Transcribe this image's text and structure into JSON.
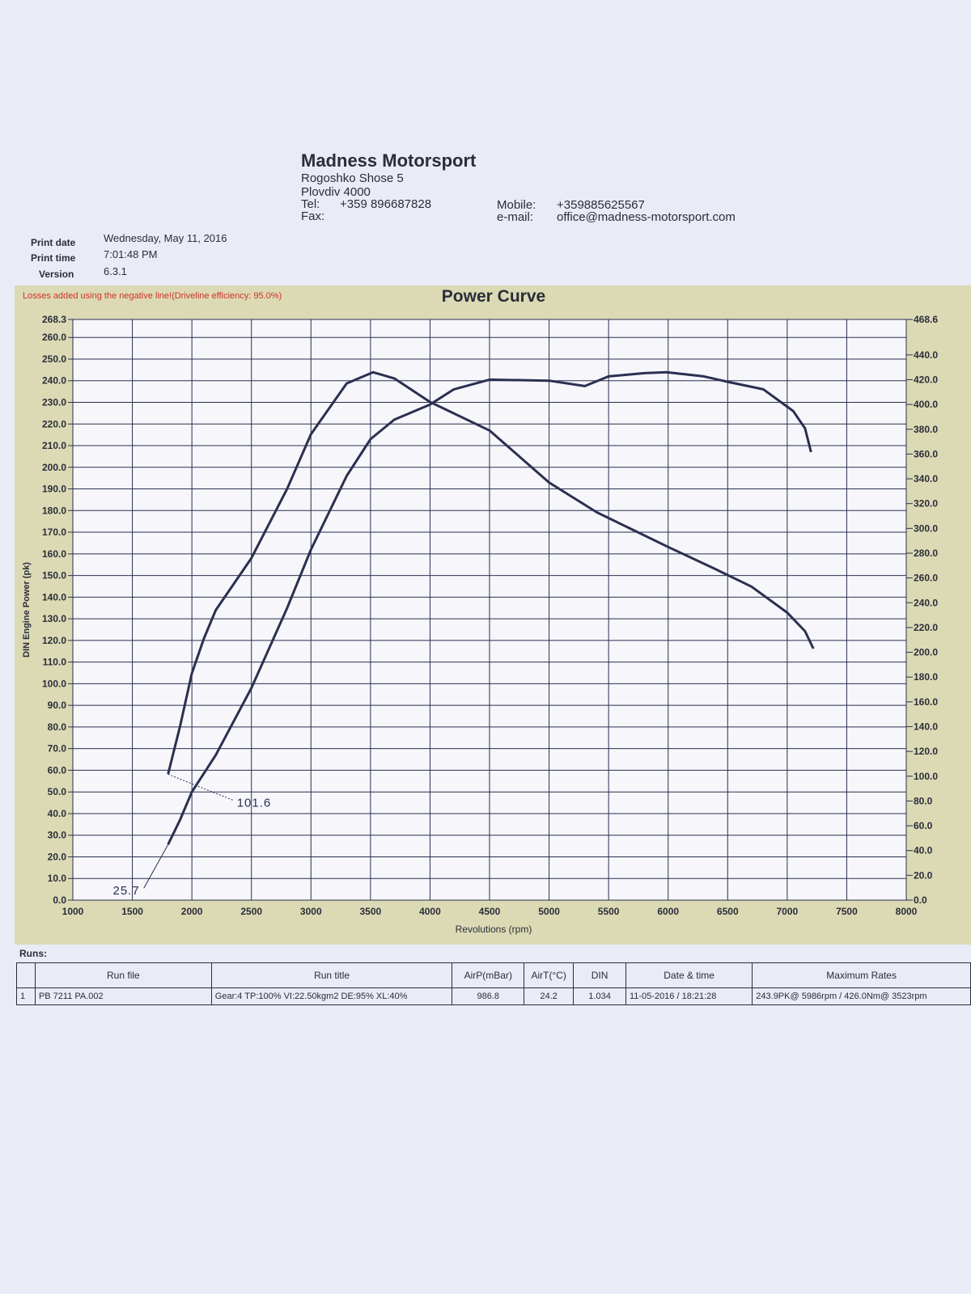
{
  "header": {
    "company": "Madness Motorsport",
    "address": "Rogoshko Shose 5",
    "city": "Plovdiv 4000",
    "tel_label": "Tel:",
    "tel": "+359 896687828",
    "fax_label": "Fax:",
    "mobile_label": "Mobile:",
    "mobile": "+359885625567",
    "email_label": "e-mail:",
    "email": "office@madness-motorsport.com"
  },
  "meta": [
    {
      "label": "Print date",
      "value": "Wednesday, May 11, 2016"
    },
    {
      "label": "Print time",
      "value": "7:01:48 PM"
    },
    {
      "label": "Version",
      "value": "6.3.1"
    }
  ],
  "chart_data": {
    "type": "line",
    "title": "Power Curve",
    "note": "Losses added using the negative line!(Driveline efficiency: 95.0%)",
    "xlabel": "Revolutions (rpm)",
    "ylabel": "DIN Engine Power (pk)",
    "grid": true,
    "xlim": [
      1000,
      8000
    ],
    "xticks": [
      1000,
      1500,
      2000,
      2500,
      3000,
      3500,
      4000,
      4500,
      5000,
      5500,
      6000,
      6500,
      7000,
      7500,
      8000
    ],
    "ylim": [
      0,
      268.3
    ],
    "yticks": [
      {
        "value": 0,
        "label": "0.0"
      },
      {
        "value": 10,
        "label": "10.0"
      },
      {
        "value": 20,
        "label": "20.0"
      },
      {
        "value": 30,
        "label": "30.0"
      },
      {
        "value": 40,
        "label": "40.0"
      },
      {
        "value": 50,
        "label": "50.0"
      },
      {
        "value": 60,
        "label": "60.0"
      },
      {
        "value": 70,
        "label": "70.0"
      },
      {
        "value": 80,
        "label": "80.0"
      },
      {
        "value": 90,
        "label": "90.0"
      },
      {
        "value": 100,
        "label": "100.0"
      },
      {
        "value": 110,
        "label": "110.0"
      },
      {
        "value": 120,
        "label": "120.0"
      },
      {
        "value": 130,
        "label": "130.0"
      },
      {
        "value": 140,
        "label": "140.0"
      },
      {
        "value": 150,
        "label": "150.0"
      },
      {
        "value": 160,
        "label": "160.0"
      },
      {
        "value": 170,
        "label": "170.0"
      },
      {
        "value": 180,
        "label": "180.0"
      },
      {
        "value": 190,
        "label": "190.0"
      },
      {
        "value": 200,
        "label": "200.0"
      },
      {
        "value": 210,
        "label": "210.0"
      },
      {
        "value": 220,
        "label": "220.0"
      },
      {
        "value": 230,
        "label": "230.0"
      },
      {
        "value": 240,
        "label": "240.0"
      },
      {
        "value": 250,
        "label": "250.0"
      },
      {
        "value": 260,
        "label": "260.0"
      },
      268.3
    ],
    "y2lim": [
      0,
      468.6
    ],
    "y2ticks": [
      {
        "value": 0,
        "label": "0.0"
      },
      {
        "value": 20,
        "label": "20.0"
      },
      {
        "value": 40,
        "label": "40.0"
      },
      {
        "value": 60,
        "label": "60.0"
      },
      {
        "value": 80,
        "label": "80.0"
      },
      {
        "value": 100,
        "label": "100.0"
      },
      {
        "value": 120,
        "label": "120.0"
      },
      {
        "value": 140,
        "label": "140.0"
      },
      {
        "value": 160,
        "label": "160.0"
      },
      {
        "value": 180,
        "label": "180.0"
      },
      {
        "value": 200,
        "label": "200.0"
      },
      {
        "value": 220,
        "label": "220.0"
      },
      {
        "value": 240,
        "label": "240.0"
      },
      {
        "value": 260,
        "label": "260.0"
      },
      {
        "value": 280,
        "label": "280.0"
      },
      {
        "value": 300,
        "label": "300.0"
      },
      {
        "value": 320,
        "label": "320.0"
      },
      {
        "value": 340,
        "label": "340.0"
      },
      {
        "value": 360,
        "label": "360.0"
      },
      {
        "value": 380,
        "label": "380.0"
      },
      {
        "value": 400,
        "label": "400.0"
      },
      {
        "value": 420,
        "label": "420.0"
      },
      {
        "value": 440,
        "label": "440.0"
      },
      468.6
    ],
    "series": [
      {
        "color": "#2b3050",
        "x": [
          1800,
          1900,
          2000,
          2200,
          2500,
          2800,
          3000,
          3300,
          3500,
          3700,
          4000,
          4200,
          4500,
          5000,
          5300,
          5500,
          5800,
          5986,
          6300,
          6500,
          6800,
          6950,
          7050,
          7150,
          7200
        ],
        "values": [
          25.7,
          37,
          50,
          67,
          98,
          135,
          162,
          196,
          213,
          222,
          229,
          236,
          240.5,
          240,
          237.5,
          242,
          243.5,
          243.9,
          242,
          239.5,
          236,
          230,
          226,
          218,
          207
        ]
      },
      {
        "color": "#2b3050",
        "axis": "y2",
        "x": [
          1800,
          1900,
          2000,
          2100,
          2200,
          2500,
          2800,
          3000,
          3300,
          3523,
          3700,
          4000,
          4500,
          5000,
          5400,
          5700,
          6000,
          6400,
          6700,
          7000,
          7150,
          7220
        ],
        "values": [
          101.6,
          140,
          183,
          211,
          234,
          276,
          332,
          376,
          417,
          426.0,
          421,
          402,
          379,
          337,
          313,
          299,
          285,
          267,
          253,
          232,
          217,
          203
        ]
      }
    ]
  },
  "table": {
    "title": "Runs:",
    "columns": [
      "Run file",
      "Run title",
      "AirP(mBar)",
      "AirT(°C)",
      "DIN",
      "Date & time",
      "Maximum Rates"
    ],
    "rows": [
      [
        1,
        "PB 7211 PA.002",
        "Gear:4 TP:100% VI:22.50kgm2 DE:95% XL:40%",
        986.8,
        24.2,
        1.034,
        "11-05-2016 / 18:21:28",
        "243.9PK@ 5986rpm / 426.0Nm@ 3523rpm"
      ]
    ]
  }
}
